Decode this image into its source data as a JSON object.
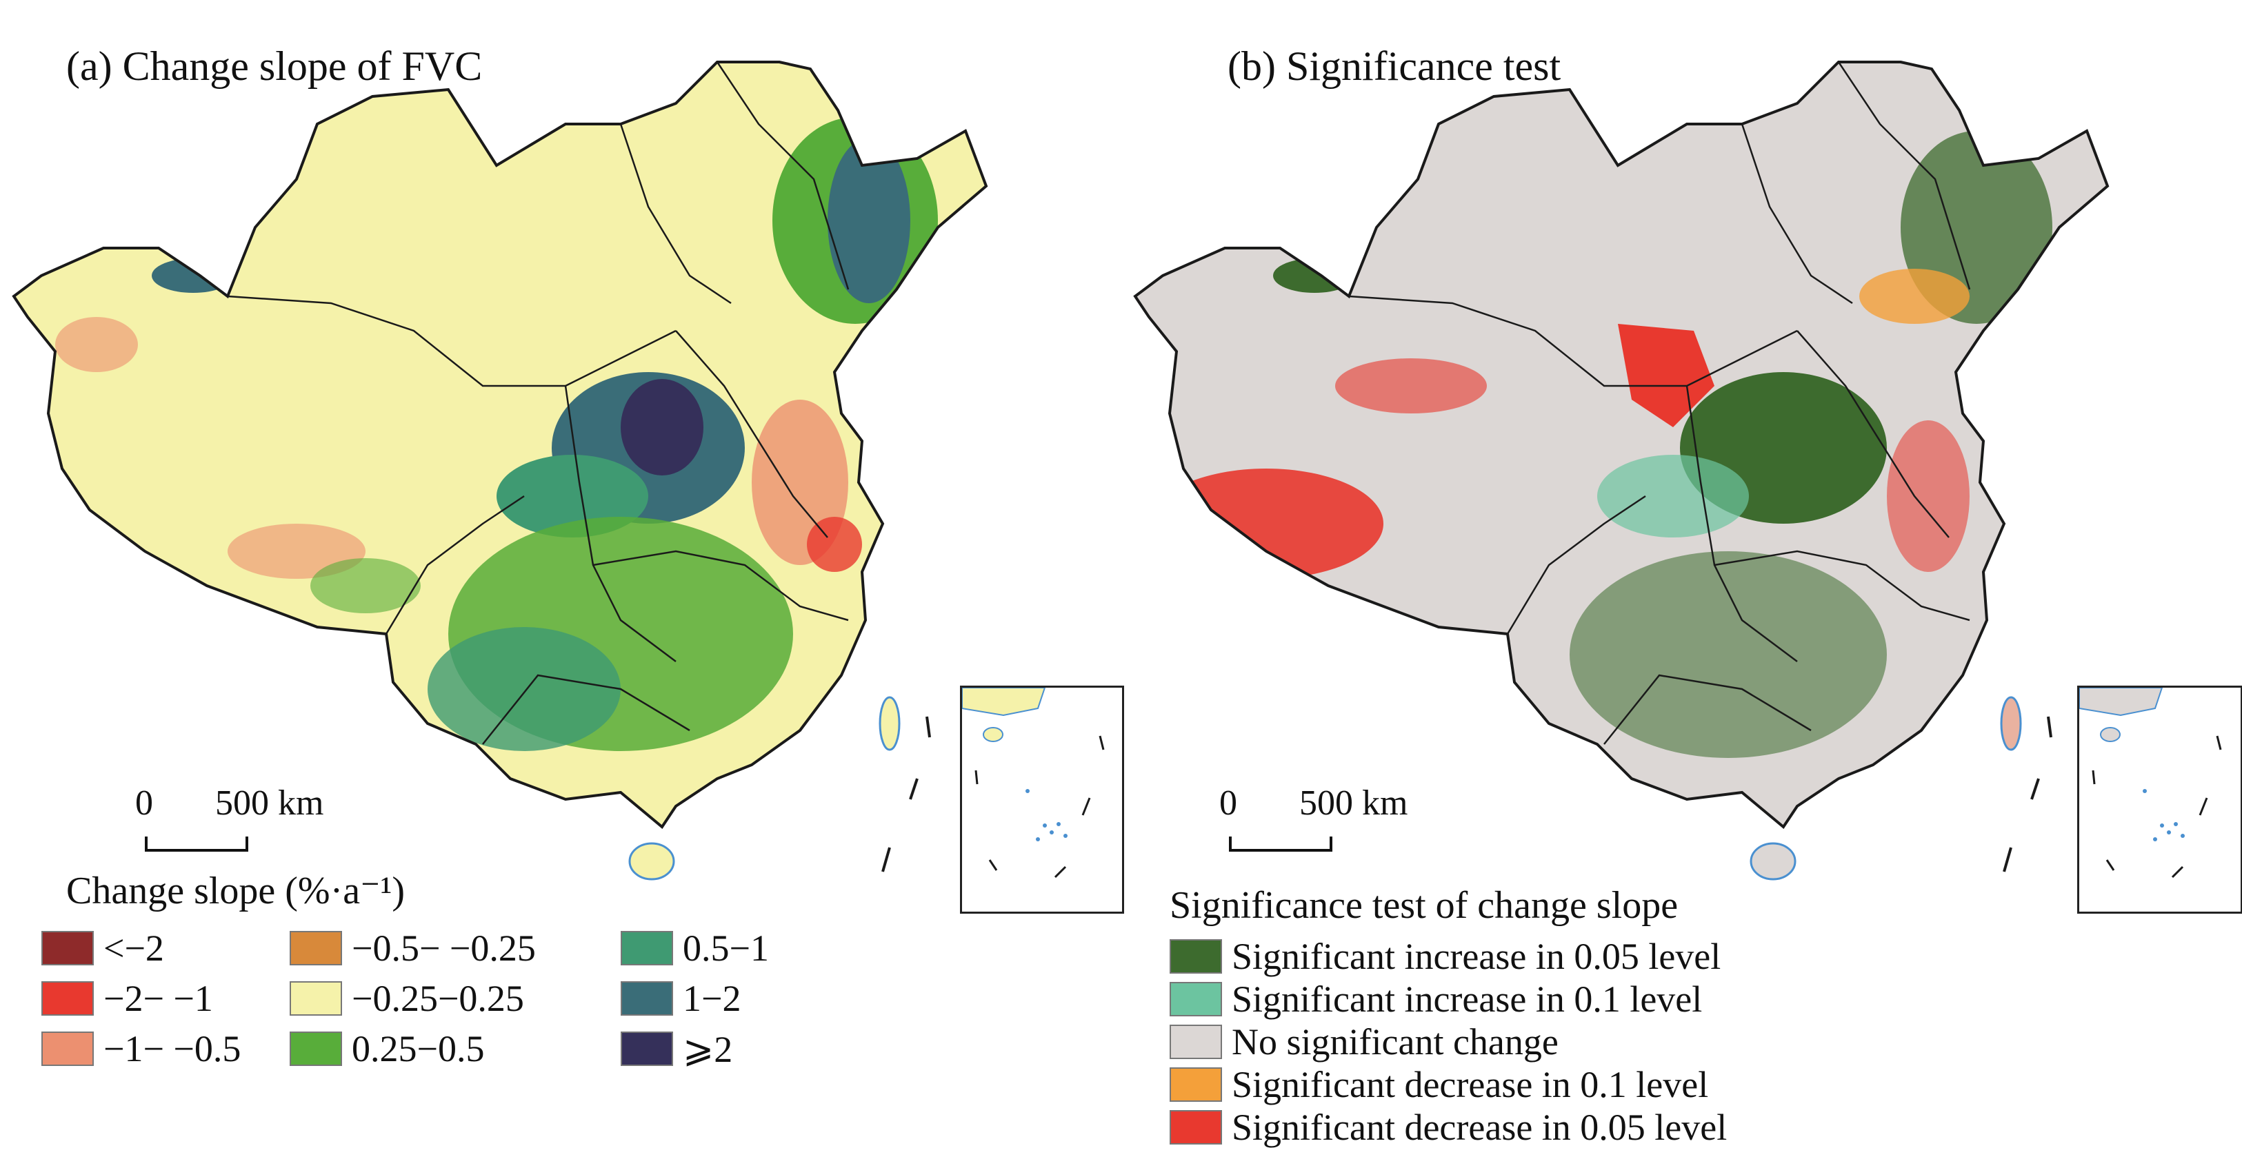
{
  "panel_a": {
    "title": "(a) Change slope of FVC",
    "scalebar": {
      "start": "0",
      "end": "500 km"
    },
    "legend": {
      "title": "Change slope (%·a⁻¹)",
      "items": [
        {
          "label": "<−2",
          "color": "#8e2a2a"
        },
        {
          "label": "−2− −1",
          "color": "#e8392f"
        },
        {
          "label": "−1− −0.5",
          "color": "#ec9070"
        },
        {
          "label": "−0.5− −0.25",
          "color": "#d8893a"
        },
        {
          "label": "−0.25−0.25",
          "color": "#f5f2aa"
        },
        {
          "label": "0.25−0.5",
          "color": "#58ad3a"
        },
        {
          "label": "0.5−1",
          "color": "#3f9a72"
        },
        {
          "label": "1−2",
          "color": "#3a6d78"
        },
        {
          "label": "⩾2",
          "color": "#35305a"
        }
      ]
    }
  },
  "panel_b": {
    "title": "(b) Significance test",
    "scalebar": {
      "start": "0",
      "end": "500 km"
    },
    "legend": {
      "title": "Significance test of change slope",
      "items": [
        {
          "label": "Significant increase in 0.05 level",
          "color": "#3d6b2e"
        },
        {
          "label": "Significant increase in 0.1 level",
          "color": "#6cc4a0"
        },
        {
          "label": "No significant change",
          "color": "#dcd7d5"
        },
        {
          "label": "Significant decrease in 0.1 level",
          "color": "#f4a03a"
        },
        {
          "label": "Significant decrease in 0.05 level",
          "color": "#e8392f"
        }
      ]
    }
  },
  "colors": {
    "boundary": "#1a1a1a",
    "coast_water": "#4a90d0"
  }
}
